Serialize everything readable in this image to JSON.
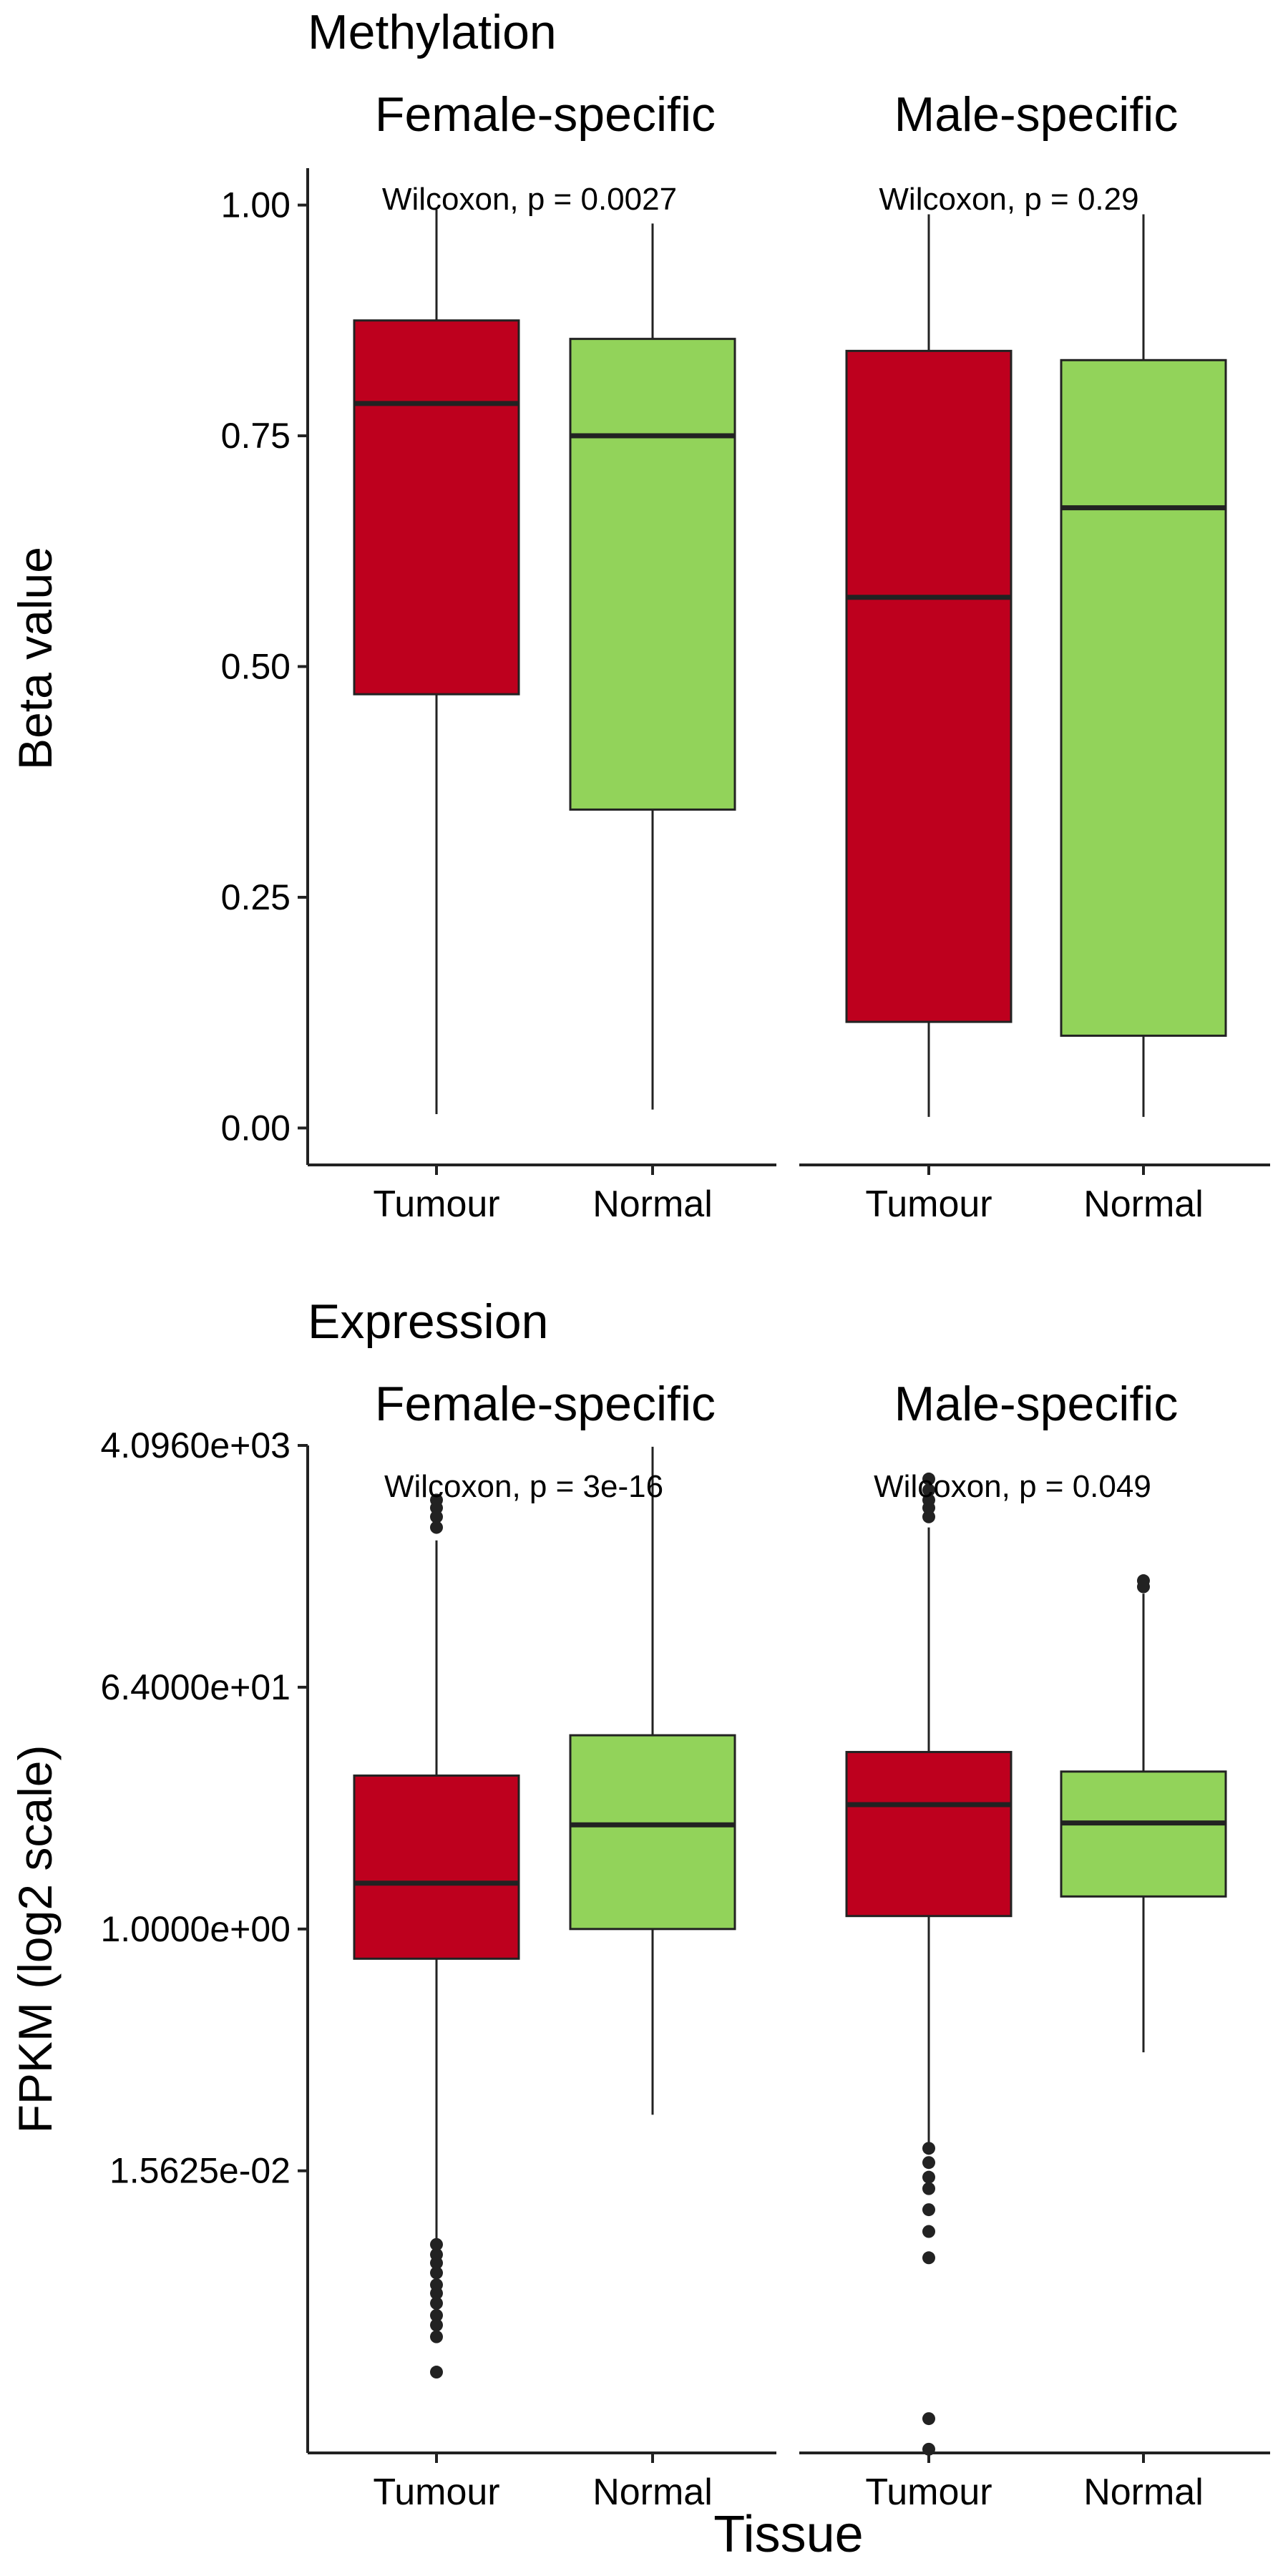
{
  "figure": {
    "x_axis_title": "Tissue",
    "colors": {
      "Tumour": "#be001e",
      "Normal": "#92d35a",
      "outline": "#222222"
    }
  },
  "chart_data": [
    {
      "type": "boxplot",
      "title": "Methylation",
      "ylabel": "Beta value",
      "xlabel": "",
      "y_scale": "linear",
      "ylim": [
        -0.04,
        1.04
      ],
      "y_ticks": [
        0,
        0.25,
        0.5,
        0.75,
        1.0
      ],
      "y_tick_labels": [
        "0.00",
        "0.25",
        "0.50",
        "0.75",
        "1.00"
      ],
      "categories": [
        "Tumour",
        "Normal"
      ],
      "grid": false,
      "legend": "none",
      "facets": [
        {
          "name": "Female-specific",
          "annotation": "Wilcoxon, p = 0.0027",
          "boxes": [
            {
              "group": "Tumour",
              "min": 0.015,
              "q1": 0.47,
              "median": 0.785,
              "q3": 0.875,
              "max": 0.995,
              "outliers": []
            },
            {
              "group": "Normal",
              "min": 0.02,
              "q1": 0.345,
              "median": 0.75,
              "q3": 0.855,
              "max": 0.98,
              "outliers": []
            }
          ]
        },
        {
          "name": "Male-specific",
          "annotation": "Wilcoxon, p = 0.29",
          "boxes": [
            {
              "group": "Tumour",
              "min": 0.012,
              "q1": 0.115,
              "median": 0.575,
              "q3": 0.842,
              "max": 0.99,
              "outliers": []
            },
            {
              "group": "Normal",
              "min": 0.012,
              "q1": 0.1,
              "median": 0.672,
              "q3": 0.832,
              "max": 0.99,
              "outliers": []
            }
          ]
        }
      ]
    },
    {
      "type": "boxplot",
      "title": "Expression",
      "ylabel": "FPKM (log2 scale)",
      "xlabel": "Tissue",
      "y_scale": "log2",
      "ylim": [
        0.000122,
        4096
      ],
      "y_ticks": [
        0.015625,
        1,
        64,
        4096
      ],
      "y_tick_labels": [
        "1.5625e-02",
        "1.0000e+00",
        "6.4000e+01",
        "4.0960e+03"
      ],
      "categories": [
        "Tumour",
        "Normal"
      ],
      "grid": false,
      "legend": "none",
      "facets": [
        {
          "name": "Female-specific",
          "annotation": "Wilcoxon, p = 3e-16",
          "boxes": [
            {
              "group": "Tumour",
              "min": 0.0045,
              "q1": 0.6,
              "median": 2.2,
              "q3": 14,
              "max": 800,
              "outliers": [
                0.0044,
                0.0037,
                0.0032,
                0.0027,
                0.0022,
                0.0019,
                0.0016,
                0.0013,
                0.0011,
                0.0009,
                0.00049,
                1000,
                1200,
                1400,
                1600
              ]
            },
            {
              "group": "Normal",
              "min": 0.041,
              "q1": 1.0,
              "median": 6.0,
              "q3": 28,
              "max": 4000,
              "outliers": []
            }
          ]
        },
        {
          "name": "Male-specific",
          "annotation": "Wilcoxon, p = 0.049",
          "boxes": [
            {
              "group": "Tumour",
              "min": 0.025,
              "q1": 1.25,
              "median": 8.5,
              "q3": 21,
              "max": 1000,
              "outliers": [
                0.023,
                0.018,
                0.014,
                0.0115,
                0.008,
                0.0055,
                0.0035,
                0.00022,
                0.00013,
                1200,
                1400,
                1600,
                1900,
                2300
              ]
            },
            {
              "group": "Normal",
              "min": 0.12,
              "q1": 1.75,
              "median": 6.2,
              "q3": 15,
              "max": 320,
              "outliers": [
                360,
                400
              ]
            }
          ]
        }
      ]
    }
  ]
}
